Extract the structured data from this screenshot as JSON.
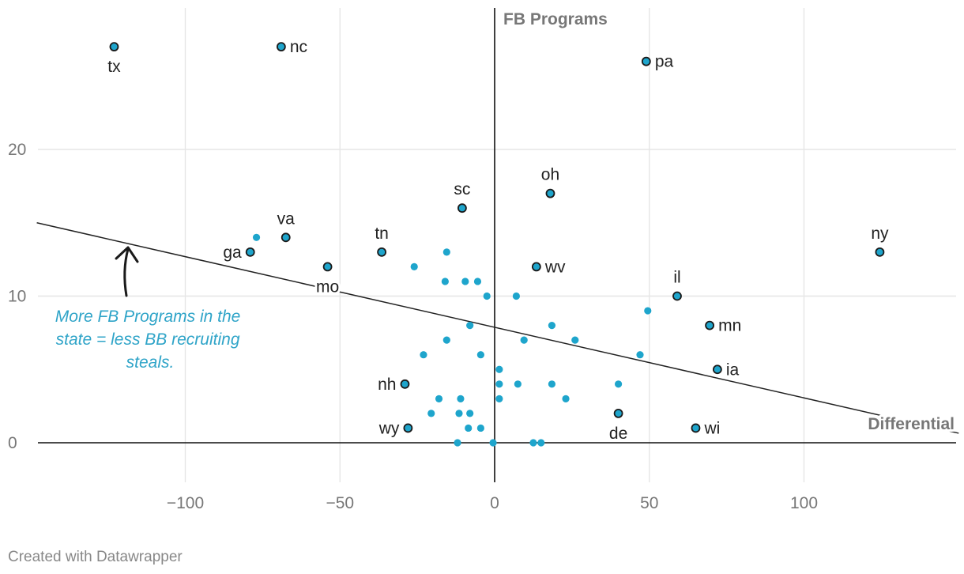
{
  "chart_data": {
    "type": "scatter",
    "x_axis_title": "Differential",
    "y_axis_title": "FB Programs",
    "xlim": [
      -150,
      150
    ],
    "ylim": [
      -3,
      29
    ],
    "x_ticks": [
      -100,
      -50,
      0,
      50,
      100
    ],
    "x_tick_labels": [
      "−100",
      "−50",
      "0",
      "50",
      "100"
    ],
    "y_ticks": [
      0,
      10,
      20
    ],
    "y_tick_labels": [
      "0",
      "10",
      "20"
    ],
    "trendline": {
      "x1": -148,
      "y1": 15,
      "x2": 150,
      "y2": 0.65
    },
    "labeled_points": [
      {
        "name": "tx",
        "x": -123,
        "y": 27,
        "label_pos": "below"
      },
      {
        "name": "nc",
        "x": -69,
        "y": 27,
        "label_pos": "right"
      },
      {
        "name": "pa",
        "x": 49,
        "y": 26,
        "label_pos": "right"
      },
      {
        "name": "oh",
        "x": 18,
        "y": 17,
        "label_pos": "above"
      },
      {
        "name": "sc",
        "x": -10.5,
        "y": 16,
        "label_pos": "above"
      },
      {
        "name": "va",
        "x": -67.5,
        "y": 14,
        "label_pos": "above"
      },
      {
        "name": "tn",
        "x": -36.5,
        "y": 13,
        "label_pos": "above"
      },
      {
        "name": "ga",
        "x": -79,
        "y": 13,
        "label_pos": "left"
      },
      {
        "name": "ny",
        "x": 124.5,
        "y": 13,
        "label_pos": "above"
      },
      {
        "name": "mo",
        "x": -54,
        "y": 12,
        "label_pos": "below"
      },
      {
        "name": "wv",
        "x": 13.5,
        "y": 12,
        "label_pos": "right"
      },
      {
        "name": "il",
        "x": 59,
        "y": 10,
        "label_pos": "above"
      },
      {
        "name": "mn",
        "x": 69.5,
        "y": 8,
        "label_pos": "right"
      },
      {
        "name": "ia",
        "x": 72,
        "y": 5,
        "label_pos": "right"
      },
      {
        "name": "nh",
        "x": -29,
        "y": 4,
        "label_pos": "left"
      },
      {
        "name": "de",
        "x": 40,
        "y": 2,
        "label_pos": "below"
      },
      {
        "name": "wy",
        "x": -28,
        "y": 1,
        "label_pos": "left"
      },
      {
        "name": "wi",
        "x": 65,
        "y": 1,
        "label_pos": "right"
      }
    ],
    "unlabeled_points": [
      {
        "x": -77,
        "y": 14
      },
      {
        "x": -26,
        "y": 12
      },
      {
        "x": -15.5,
        "y": 13
      },
      {
        "x": -16,
        "y": 11
      },
      {
        "x": -9.5,
        "y": 11
      },
      {
        "x": -5.5,
        "y": 11
      },
      {
        "x": -2.5,
        "y": 10
      },
      {
        "x": 7,
        "y": 10
      },
      {
        "x": 49.5,
        "y": 9
      },
      {
        "x": -8,
        "y": 8
      },
      {
        "x": 18.5,
        "y": 8
      },
      {
        "x": -15.5,
        "y": 7
      },
      {
        "x": 9.5,
        "y": 7
      },
      {
        "x": 26,
        "y": 7
      },
      {
        "x": -23,
        "y": 6
      },
      {
        "x": -4.5,
        "y": 6
      },
      {
        "x": 47,
        "y": 6
      },
      {
        "x": 1.5,
        "y": 5
      },
      {
        "x": 1.5,
        "y": 4
      },
      {
        "x": 7.5,
        "y": 4
      },
      {
        "x": 18.5,
        "y": 4
      },
      {
        "x": 40,
        "y": 4
      },
      {
        "x": -18,
        "y": 3
      },
      {
        "x": -11,
        "y": 3
      },
      {
        "x": 1.5,
        "y": 3
      },
      {
        "x": 23,
        "y": 3
      },
      {
        "x": -20.5,
        "y": 2
      },
      {
        "x": -11.5,
        "y": 2
      },
      {
        "x": -8,
        "y": 2
      },
      {
        "x": -8.5,
        "y": 1
      },
      {
        "x": -4.5,
        "y": 1
      },
      {
        "x": -12,
        "y": 0
      },
      {
        "x": -0.5,
        "y": 0
      },
      {
        "x": 12.5,
        "y": 0
      },
      {
        "x": 15,
        "y": 0
      }
    ],
    "annotation": {
      "lines": [
        "More FB Programs in the",
        "state = less BB recruiting",
        "steals."
      ]
    },
    "colors": {
      "point": "#1ea5cc",
      "point_outline": "#1a1a1a",
      "annotation": "#2fa4c8",
      "trendline": "#222222"
    }
  },
  "footer": "Created with Datawrapper"
}
